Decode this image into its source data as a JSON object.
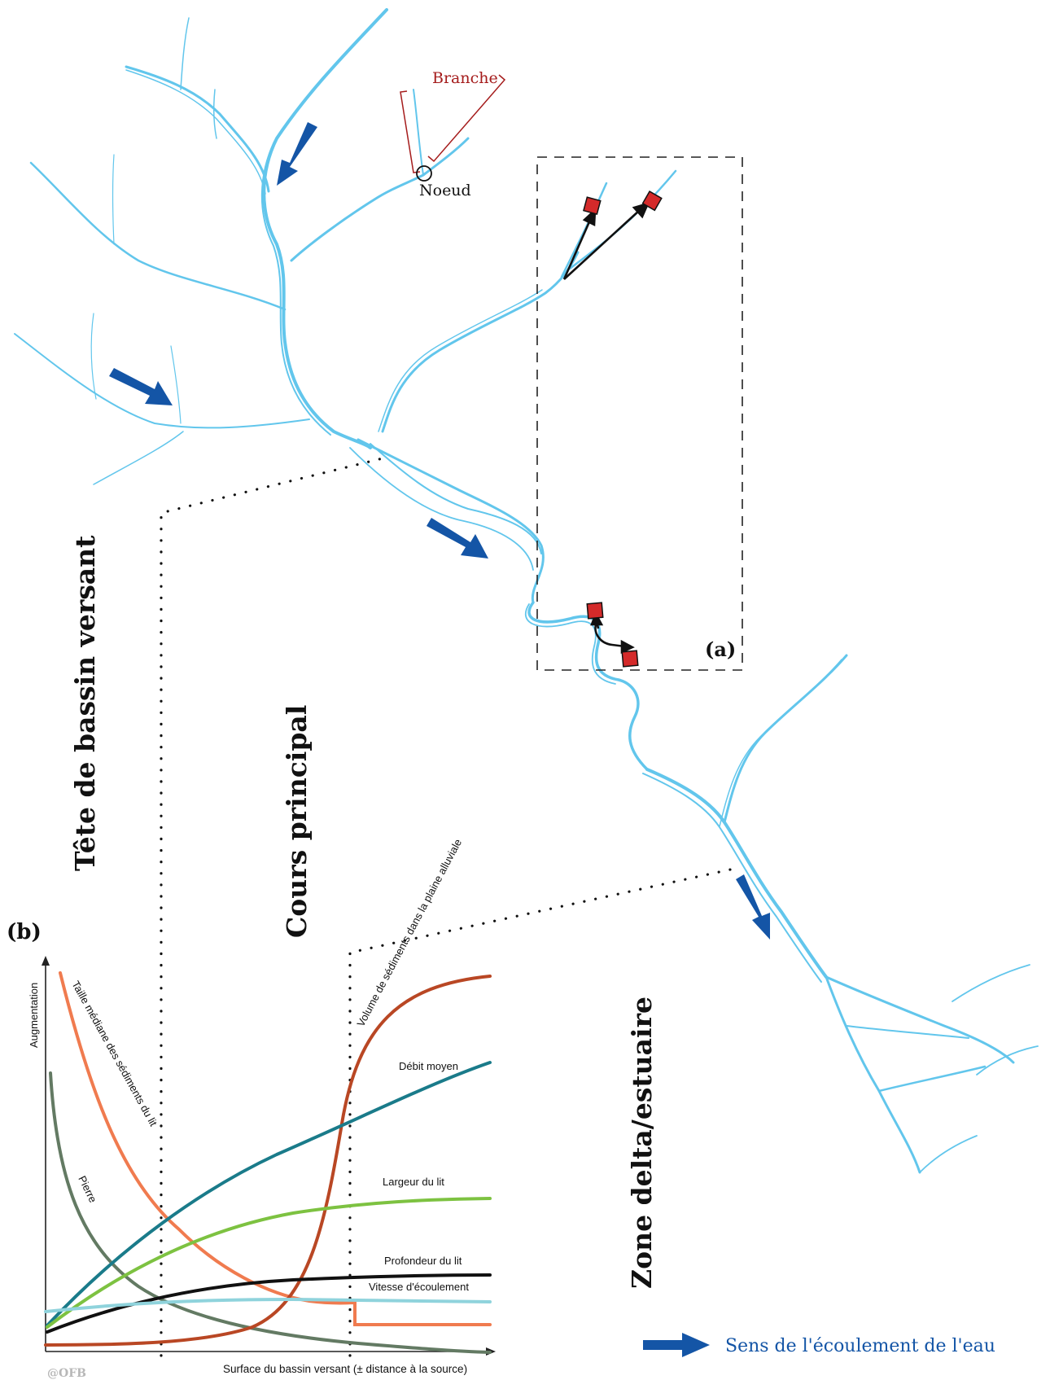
{
  "labels": {
    "branche": "Branche",
    "noeud": "Noeud",
    "panel_a": "(a)",
    "panel_b": "(b)",
    "zone_tete": "Tête de bassin versant",
    "zone_cours": "Cours principal",
    "zone_delta": "Zone delta/estuaire",
    "legend_flow": "Sens de l'écoulement de l'eau",
    "credit": "@OFB"
  },
  "colors": {
    "river": "#62c6ec",
    "flow_arrow": "#1455a6",
    "marker": "#d42a2a",
    "bracket": "#a51c1c",
    "legend_text": "#1455a6"
  },
  "chart_data": {
    "type": "line",
    "xlabel": "Surface du bassin versant (± distance à la source)",
    "ylabel": "Augmentation",
    "series": [
      {
        "name": "Taille médiane des sédiments du lit",
        "color": "#f07b4f"
      },
      {
        "name": "Pierre",
        "color": "#637a63"
      },
      {
        "name": "Volume de sédiments dans la plaine alluviale",
        "color": "#b94724"
      },
      {
        "name": "Débit moyen",
        "color": "#1a7b8a"
      },
      {
        "name": "Largeur du lit",
        "color": "#7dc241"
      },
      {
        "name": "Profondeur du lit",
        "color": "#111111"
      },
      {
        "name": "Vitesse d'écoulement",
        "color": "#8fd3dc"
      }
    ]
  }
}
